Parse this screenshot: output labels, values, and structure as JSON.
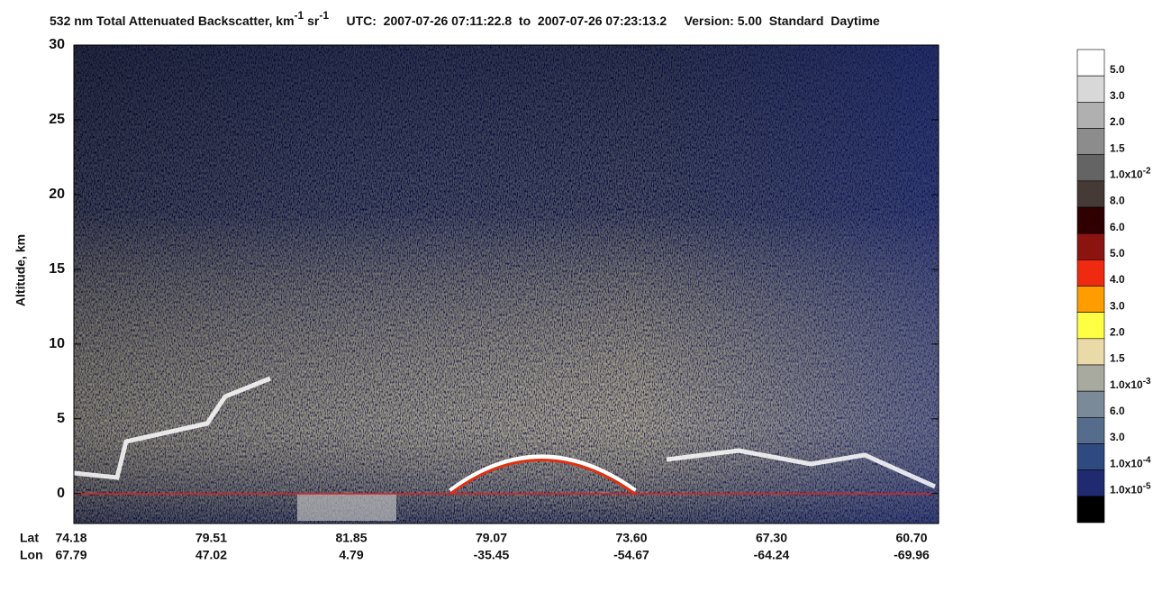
{
  "chart_data": {
    "type": "curtain",
    "title": {
      "main": "532 nm Total Attenuated Backscatter, km",
      "exp1": "-1",
      "unit2": "sr",
      "exp2": "-1",
      "utc": "UTC:  2007-07-26 07:11:22.8  to  2007-07-26 07:23:13.2",
      "version": "Version: 5.00",
      "product": "Standard",
      "daytime": "Daytime"
    },
    "y_label": "Altitude, km",
    "ylim": [
      -2,
      30
    ],
    "yticks": [
      0,
      5,
      10,
      15,
      20,
      25,
      30
    ],
    "lat_label": "Lat",
    "lon_label": "Lon",
    "lat": [
      "74.18",
      "79.51",
      "81.85",
      "79.07",
      "73.60",
      "67.30",
      "60.70"
    ],
    "lon": [
      "67.79",
      "47.02",
      "4.79",
      "-35.45",
      "-54.67",
      "-64.24",
      "-69.96"
    ],
    "colorbar": [
      {
        "color": "#ffffff",
        "label": "5.0"
      },
      {
        "color": "#d8d8d8",
        "label": "3.0"
      },
      {
        "color": "#b0b0b0",
        "label": "2.0"
      },
      {
        "color": "#8c8c8c",
        "label": "1.5"
      },
      {
        "color": "#646464",
        "label": "1.0x10",
        "exponent": "-2"
      },
      {
        "color": "#463a36",
        "label": "8.0"
      },
      {
        "color": "#300000",
        "label": "6.0"
      },
      {
        "color": "#8b1410",
        "label": "5.0"
      },
      {
        "color": "#ee2a10",
        "label": "4.0"
      },
      {
        "color": "#ff9c00",
        "label": "3.0"
      },
      {
        "color": "#ffff44",
        "label": "2.0"
      },
      {
        "color": "#eadaa8",
        "label": "1.5"
      },
      {
        "color": "#a8aaa0",
        "label": "1.0x10",
        "exponent": "-3"
      },
      {
        "color": "#7a8a98",
        "label": "6.0"
      },
      {
        "color": "#566c8c",
        "label": "3.0"
      },
      {
        "color": "#2e4a80",
        "label": "1.0x10",
        "exponent": "-4"
      },
      {
        "color": "#202a70",
        "label": "1.0x10",
        "exponent": "-5"
      },
      {
        "color": "#000000"
      }
    ]
  }
}
